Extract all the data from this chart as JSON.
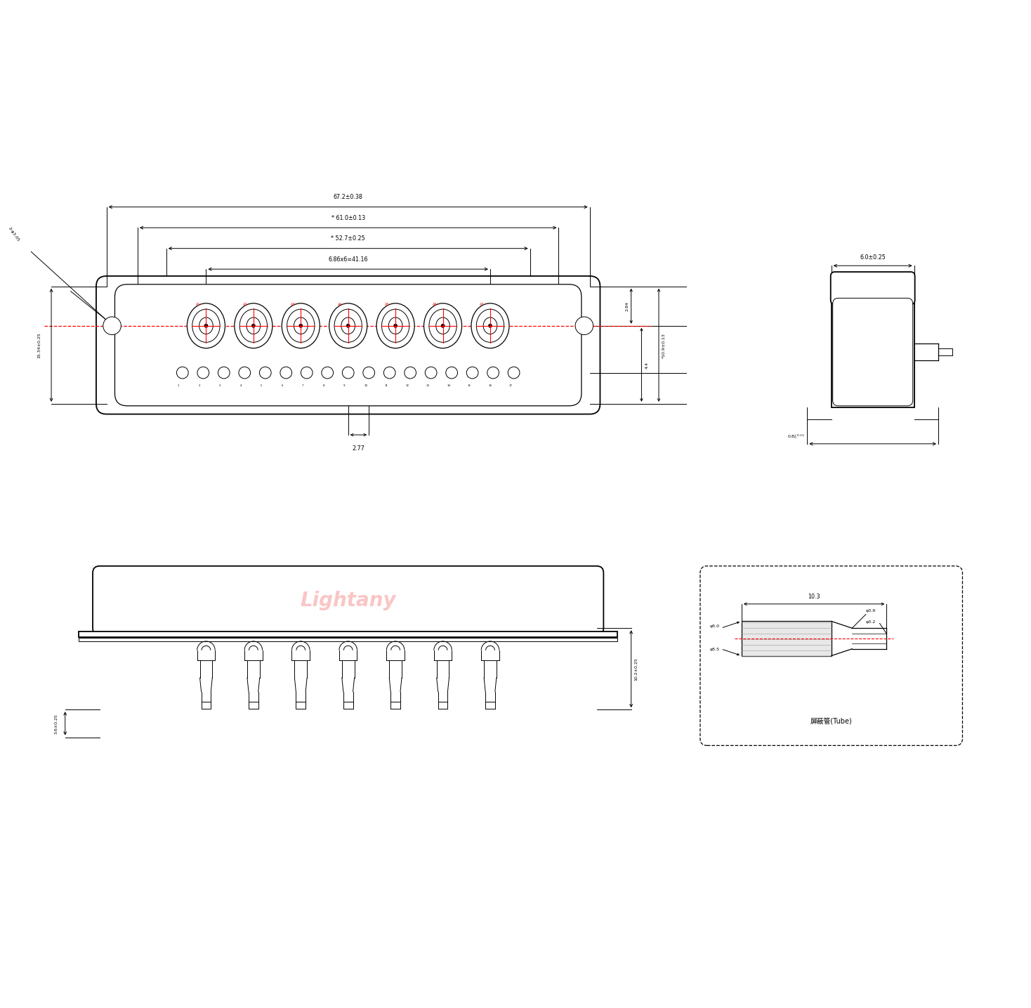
{
  "bg_color": "#ffffff",
  "line_color": "#000000",
  "red_color": "#ff0000",
  "watermark_color": "#f5a0a0",
  "dim_67": "67.2±0.38",
  "dim_61": "* 61.0±0.13",
  "dim_52": "* 52.7±0.25",
  "dim_6x6": "6.86x6=41.16",
  "dim_15": "15.34±0.25",
  "dim_hole": "2-φ3.05",
  "dim_284": "2.84",
  "dim_44": "4.4",
  "dim_109": "*10.9±0.13",
  "dim_277": "2.77",
  "dim_6025": "6.0±0.25",
  "dim_08": "0.8",
  "dim_08b": "+0.13\n    0",
  "dim_102": "10.2±0.25",
  "dim_36": "3.6±0.25",
  "dim_103": "10.3",
  "dim_39": "φ3.9",
  "dim_32": "φ3.2",
  "dim_50": "φ5.0",
  "dim_55": "φ5.5",
  "tube_label": "屏蔽管(Tube)",
  "watermark": "Lightany",
  "n_coax": 7,
  "n_signal": 17,
  "coax_labels": [
    "A1",
    "A2",
    "A3",
    "A4",
    "A5",
    "A6",
    "A7"
  ]
}
